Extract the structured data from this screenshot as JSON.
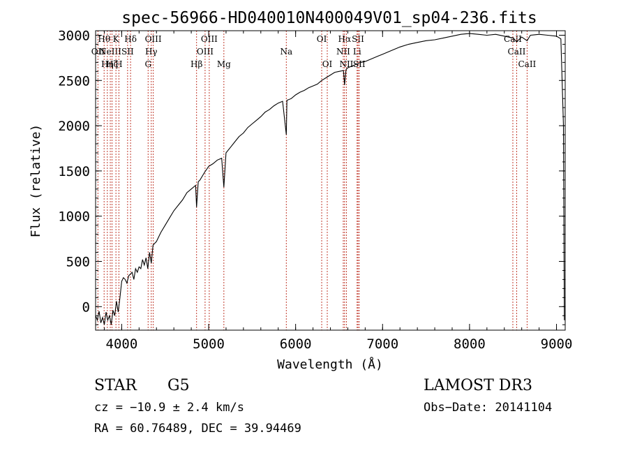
{
  "chart_data": {
    "type": "line",
    "title": "spec-56966-HD040010N400049V01_sp04-236.fits",
    "xlabel": "Wavelength (Å)",
    "ylabel": "Flux (relative)",
    "xlim": [
      3700,
      9100
    ],
    "ylim": [
      -260,
      3050
    ],
    "xticks": [
      4000,
      5000,
      6000,
      7000,
      8000,
      9000
    ],
    "yticks": [
      0,
      500,
      1000,
      1500,
      2000,
      2500,
      3000
    ],
    "grid": false,
    "series": [
      {
        "x": [
          3700,
          3720,
          3740,
          3760,
          3780,
          3800,
          3820,
          3840,
          3860,
          3880,
          3900,
          3920,
          3940,
          3960,
          3980,
          4000,
          4020,
          4040,
          4060,
          4080,
          4100,
          4120,
          4140,
          4160,
          4180,
          4200,
          4220,
          4240,
          4260,
          4280,
          4300,
          4320,
          4340,
          4360,
          4380,
          4400,
          4450,
          4500,
          4550,
          4600,
          4650,
          4700,
          4750,
          4800,
          4850,
          4861,
          4880,
          4900,
          4950,
          5000,
          5050,
          5100,
          5150,
          5175,
          5200,
          5250,
          5300,
          5350,
          5400,
          5450,
          5500,
          5550,
          5600,
          5650,
          5700,
          5750,
          5800,
          5850,
          5893,
          5900,
          5950,
          6000,
          6050,
          6100,
          6150,
          6200,
          6250,
          6300,
          6350,
          6400,
          6450,
          6500,
          6550,
          6563,
          6580,
          6600,
          6650,
          6700,
          6750,
          6800,
          6850,
          6900,
          6950,
          7000,
          7050,
          7100,
          7150,
          7200,
          7300,
          7400,
          7500,
          7600,
          7700,
          7800,
          7900,
          8000,
          8100,
          8200,
          8300,
          8400,
          8500,
          8542,
          8600,
          8662,
          8700,
          8800,
          8900,
          9000,
          9050,
          9080,
          9090
        ],
        "y": [
          -100,
          -150,
          -50,
          -180,
          -120,
          -200,
          -60,
          -150,
          -100,
          -200,
          -40,
          -100,
          60,
          -60,
          100,
          280,
          320,
          300,
          260,
          340,
          360,
          380,
          300,
          420,
          380,
          440,
          420,
          520,
          460,
          540,
          420,
          600,
          480,
          680,
          700,
          720,
          820,
          900,
          980,
          1060,
          1120,
          1180,
          1260,
          1300,
          1340,
          1100,
          1380,
          1400,
          1480,
          1550,
          1580,
          1620,
          1640,
          1320,
          1700,
          1760,
          1820,
          1880,
          1920,
          1980,
          2020,
          2060,
          2100,
          2150,
          2180,
          2220,
          2250,
          2270,
          1900,
          2280,
          2300,
          2340,
          2370,
          2390,
          2420,
          2440,
          2460,
          2500,
          2530,
          2560,
          2590,
          2600,
          2610,
          2450,
          2620,
          2640,
          2660,
          2680,
          2700,
          2710,
          2730,
          2750,
          2770,
          2790,
          2810,
          2830,
          2850,
          2870,
          2900,
          2920,
          2940,
          2950,
          2970,
          2990,
          3010,
          3020,
          3010,
          3000,
          3010,
          2990,
          2970,
          2930,
          2980,
          2940,
          3000,
          3010,
          3000,
          2990,
          2960,
          2000,
          -150
        ]
      }
    ],
    "lines": [
      {
        "wl": 3727,
        "label": "OII",
        "row": 1
      },
      {
        "wl": 3798,
        "label": "Hθ",
        "row": 0
      },
      {
        "wl": 3835,
        "label": "Hη",
        "row": 2
      },
      {
        "wl": 3869,
        "label": "NeIII",
        "row": 1
      },
      {
        "wl": 3889,
        "label": "Hζ",
        "row": 2
      },
      {
        "wl": 3934,
        "label": "K",
        "row": 0
      },
      {
        "wl": 3968,
        "label": "H",
        "row": 2
      },
      {
        "wl": 4068,
        "label": "SII",
        "row": 1
      },
      {
        "wl": 4102,
        "label": "Hδ",
        "row": 0
      },
      {
        "wl": 4304,
        "label": "G",
        "row": 2
      },
      {
        "wl": 4340,
        "label": "Hγ",
        "row": 1
      },
      {
        "wl": 4363,
        "label": "OIII",
        "row": 0
      },
      {
        "wl": 4861,
        "label": "Hβ",
        "row": 2
      },
      {
        "wl": 4959,
        "label": "OIII",
        "row": 1
      },
      {
        "wl": 5007,
        "label": "OIII",
        "row": 0
      },
      {
        "wl": 5175,
        "label": "Mg",
        "row": 2
      },
      {
        "wl": 5893,
        "label": "Na",
        "row": 1
      },
      {
        "wl": 6300,
        "label": "OI",
        "row": 0
      },
      {
        "wl": 6364,
        "label": "OI",
        "row": 2
      },
      {
        "wl": 6548,
        "label": "NII",
        "row": 1
      },
      {
        "wl": 6563,
        "label": "Hα",
        "row": 0
      },
      {
        "wl": 6584,
        "label": "NII",
        "row": 2
      },
      {
        "wl": 6707,
        "label": "Li",
        "row": 1
      },
      {
        "wl": 6717,
        "label": "SII",
        "row": 0
      },
      {
        "wl": 6731,
        "label": "SII",
        "row": 2
      },
      {
        "wl": 8498,
        "label": "CaII",
        "row": 0
      },
      {
        "wl": 8542,
        "label": "CaII",
        "row": 1
      },
      {
        "wl": 8662,
        "label": "CaII",
        "row": 2
      }
    ]
  },
  "info": {
    "class_label": "STAR",
    "subclass": "G5",
    "survey": "LAMOST DR3",
    "cz": "cz = −10.9 ± 2.4 km/s",
    "obs_date": "Obs−Date: 20141104",
    "radec": "RA =  60.76489, DEC =  39.94469"
  }
}
